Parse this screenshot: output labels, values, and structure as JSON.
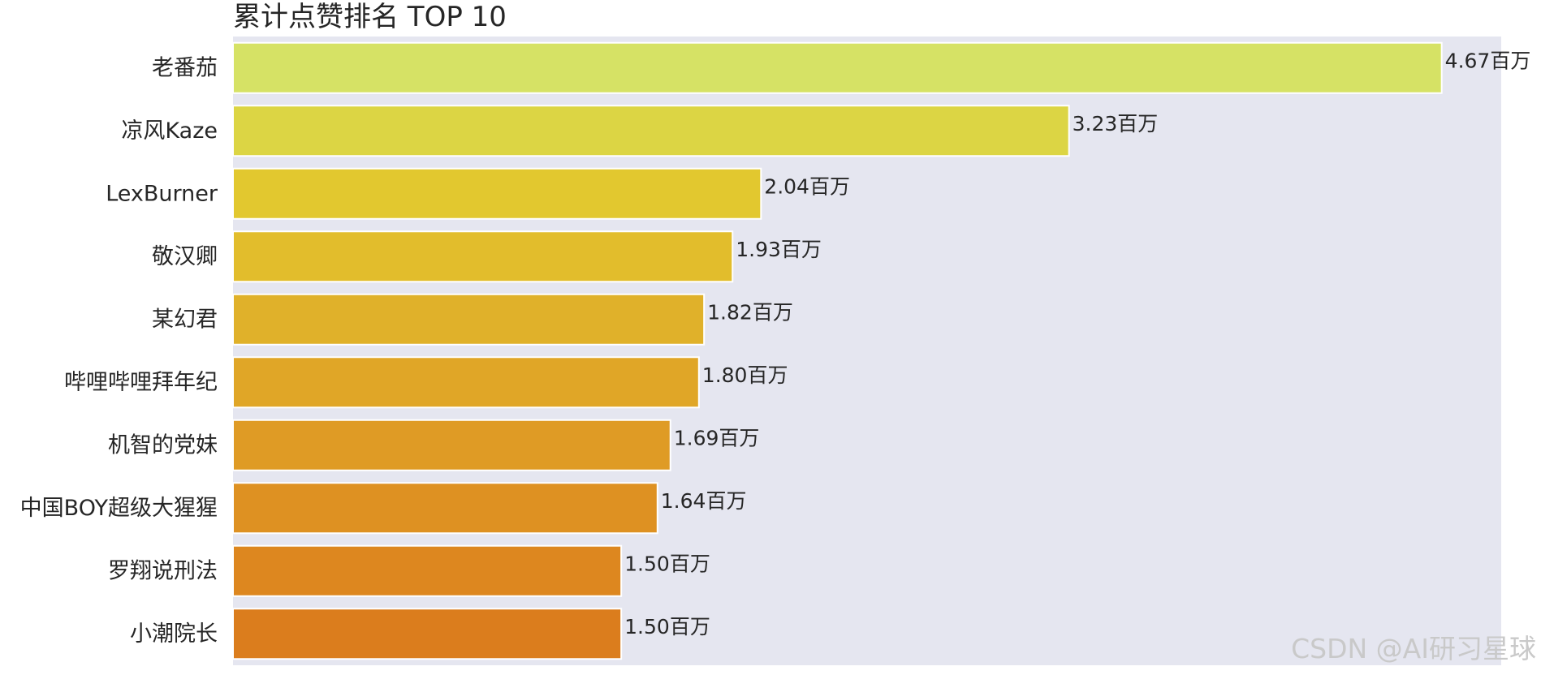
{
  "chart_data": {
    "type": "bar",
    "orientation": "horizontal",
    "title": "累计点赞排名 TOP 10",
    "xlabel": "",
    "ylabel": "",
    "grid": false,
    "xlim": [
      0,
      4.9
    ],
    "value_unit": "百万",
    "categories": [
      "老番茄",
      "凉风Kaze",
      "LexBurner",
      "敬汉卿",
      "某幻君",
      "哔哩哔哩拜年纪",
      "机智的党妹",
      "中国BOY超级大猩猩",
      "罗翔说刑法",
      "小潮院长"
    ],
    "values": [
      4.67,
      3.23,
      2.04,
      1.93,
      1.82,
      1.8,
      1.69,
      1.64,
      1.5,
      1.5
    ],
    "value_labels": [
      "4.67百万",
      "3.23百万",
      "2.04百万",
      "1.93百万",
      "1.82百万",
      "1.80百万",
      "1.69百万",
      "1.64百万",
      "1.50百万",
      "1.50百万"
    ],
    "bar_colors": [
      "#d6e265",
      "#dcd544",
      "#e2c82f",
      "#e2bd2c",
      "#e0b12a",
      "#e0a627",
      "#df9b25",
      "#de9122",
      "#dd871f",
      "#db7d1d"
    ]
  },
  "colors": {
    "plot_background": "#e5e6f0",
    "text": "#262626",
    "bar_edge": "#ffffff"
  },
  "watermark": "CSDN @AI研习星球"
}
